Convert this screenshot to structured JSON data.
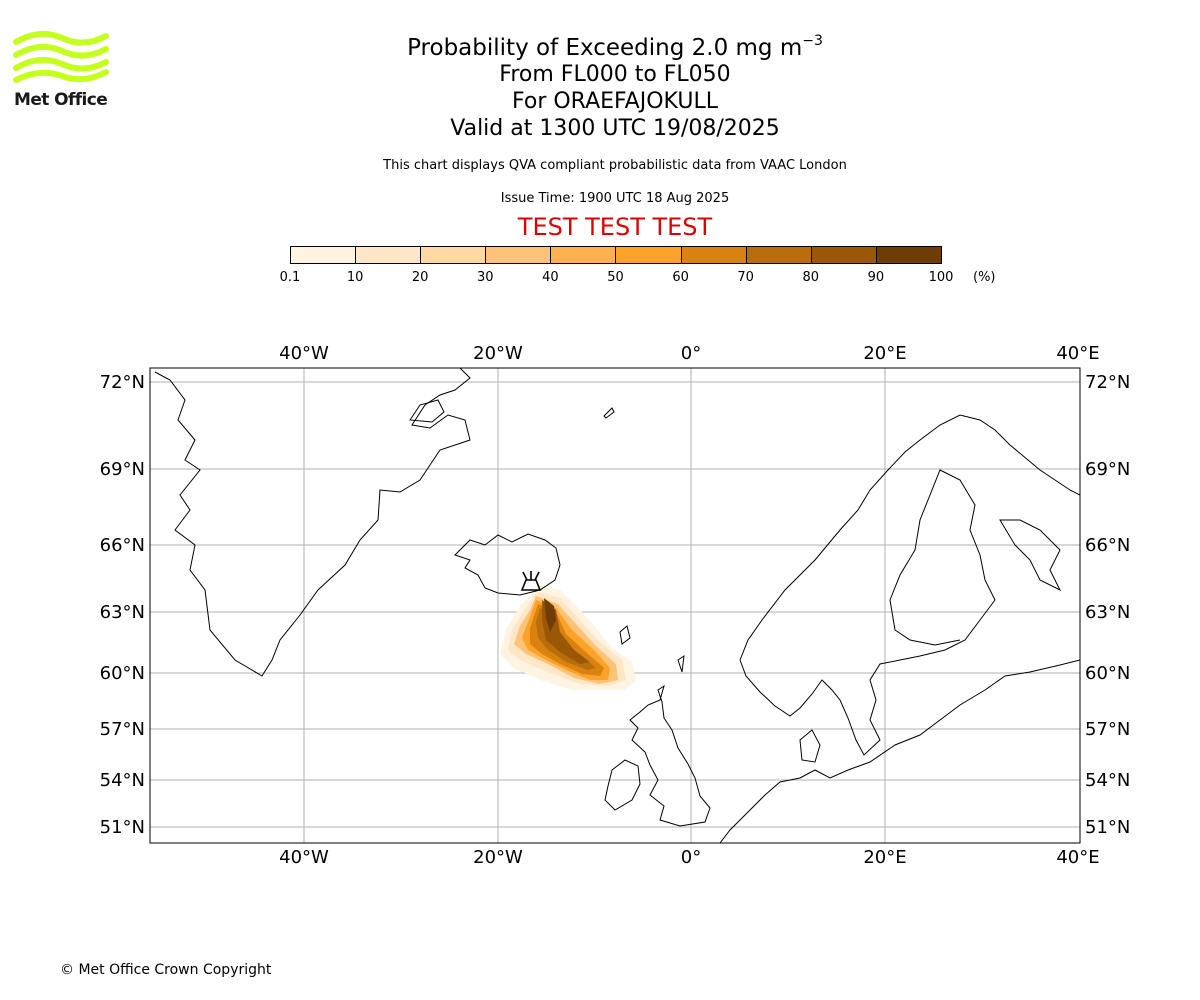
{
  "logo": {
    "text": "Met Office",
    "color": "#c5ff1e"
  },
  "header": {
    "title_main": "Probability of Exceeding 2.0 mg m",
    "title_sup": "−3",
    "level_range": "From FL000 to FL050",
    "volcano": "For ORAEFAJOKULL",
    "valid_time": "Valid at 1300 UTC 19/08/2025",
    "description": "This chart displays QVA compliant probabilistic data from VAAC London",
    "issue_time": "Issue Time: 1900 UTC 18 Aug 2025",
    "test_label": "TEST TEST TEST"
  },
  "colorbar": {
    "ticks": [
      "0.1",
      "10",
      "20",
      "30",
      "40",
      "50",
      "60",
      "70",
      "80",
      "90",
      "100"
    ],
    "unit": "(%)",
    "colors": [
      "#fff4e2",
      "#fee6c6",
      "#fed9a4",
      "#fec377",
      "#feb14c",
      "#fca228",
      "#da8210",
      "#b96d0b",
      "#9a5807",
      "#6e3d06"
    ]
  },
  "map": {
    "lon_labels": [
      "40°W",
      "20°W",
      "0°",
      "20°E",
      "40°E"
    ],
    "lat_labels": [
      "72°N",
      "69°N",
      "66°N",
      "63°N",
      "60°N",
      "57°N",
      "54°N",
      "51°N"
    ],
    "volcano_symbol": "volcano-icon"
  },
  "footer": {
    "copyright": "© Met Office Crown Copyright"
  }
}
